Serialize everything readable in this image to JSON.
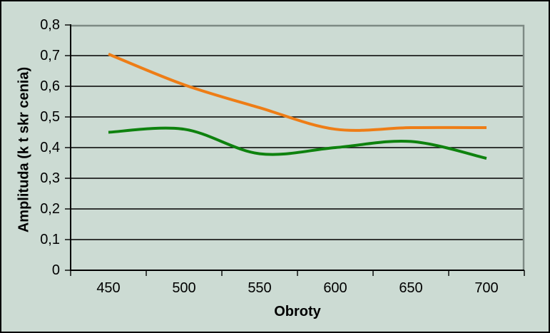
{
  "chart_data": {
    "type": "line",
    "smooth": true,
    "title": "",
    "xlabel": "Obroty",
    "ylabel": "Amplituda (k  t skr  cenia)",
    "categories": [
      "450",
      "500",
      "550",
      "600",
      "650",
      "700"
    ],
    "series": [
      {
        "name": "series-orange",
        "color": "#ee7d16",
        "values": [
          0.705,
          0.605,
          0.53,
          0.46,
          0.465,
          0.465
        ]
      },
      {
        "name": "series-green",
        "color": "#0e820e",
        "values": [
          0.45,
          0.46,
          0.38,
          0.4,
          0.42,
          0.365
        ]
      }
    ],
    "ylim": [
      0,
      0.8
    ],
    "yticks": [
      0,
      0.1,
      0.2,
      0.3,
      0.4,
      0.5,
      0.6,
      0.7,
      0.8
    ],
    "ytick_labels": [
      "0",
      "0,1",
      "0,2",
      "0,3",
      "0,4",
      "0,5",
      "0,6",
      "0,7",
      "0,8"
    ],
    "grid": true,
    "legend_position": "none"
  },
  "colors": {
    "background": "#ccdbd3",
    "grid": "#000000",
    "axis": "#000000",
    "plot_border": "#7d8a84",
    "text": "#000000"
  }
}
